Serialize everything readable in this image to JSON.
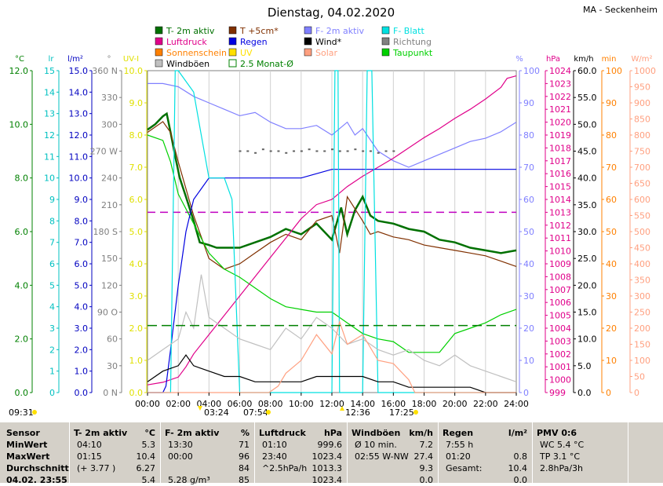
{
  "title": "Dienstag, 04.02.2020",
  "station": "MA - Seckenheim",
  "legend": [
    {
      "label": "T- 2m aktiv",
      "color": "#007000",
      "kind": "box"
    },
    {
      "label": "T +5cm*",
      "color": "#803000",
      "kind": "box"
    },
    {
      "label": "F- 2m aktiv",
      "color": "#8080ff",
      "kind": "box"
    },
    {
      "label": "F- Blatt",
      "color": "#00e0e0",
      "kind": "box"
    },
    {
      "label": "Luftdruck",
      "color": "#e0008a",
      "kind": "box"
    },
    {
      "label": "Regen",
      "color": "#0000e0",
      "kind": "box"
    },
    {
      "label": "Wind*",
      "color": "#000000",
      "kind": "box"
    },
    {
      "label": "Richtung",
      "color": "#808080",
      "kind": "box"
    },
    {
      "label": "Sonnenschein",
      "color": "#ff8000",
      "kind": "box"
    },
    {
      "label": "UV",
      "color": "#ffe000",
      "kind": "box"
    },
    {
      "label": "Solar",
      "color": "#ffa080",
      "kind": "box"
    },
    {
      "label": "Taupunkt",
      "color": "#00d000",
      "kind": "box"
    },
    {
      "label": "Windböen",
      "color": "#c0c0c0",
      "kind": "box"
    },
    {
      "label": "2.5 Monat-Ø",
      "color": "#008000",
      "kind": "hollow"
    }
  ],
  "axes": {
    "left": [
      {
        "unit": "°C",
        "color": "#008000",
        "ticks": [
          "12.0",
          "10.0",
          "8.0",
          "6.0",
          "4.0",
          "2.0",
          "0.0"
        ]
      },
      {
        "unit": "lr",
        "color": "#00c0c0",
        "ticks": [
          "15",
          "14",
          "13",
          "12",
          "11",
          "10",
          "9",
          "8",
          "7",
          "6",
          "5",
          "4",
          "3",
          "2",
          "1",
          "0"
        ]
      },
      {
        "unit": "l/m²",
        "color": "#0000c0",
        "ticks": [
          "15.0",
          "14.0",
          "13.0",
          "12.0",
          "11.0",
          "10.0",
          "9.0",
          "8.0",
          "7.0",
          "6.0",
          "5.0",
          "4.0",
          "3.0",
          "2.0",
          "1.0",
          "0.0"
        ]
      },
      {
        "unit": "°",
        "color": "#808080",
        "ticks": [
          "360 N",
          "330",
          "300",
          "270 W",
          "240",
          "210",
          "180 S",
          "150",
          "120",
          "90 O",
          "60",
          "30",
          "0 N"
        ]
      },
      {
        "unit": "UV-I",
        "color": "#e0e000",
        "ticks": [
          "10.0",
          "9.0",
          "8.0",
          "7.0",
          "6.0",
          "5.0",
          "4.0",
          "3.0",
          "2.0",
          "1.0",
          "0.0"
        ]
      }
    ],
    "right": [
      {
        "unit": "%",
        "color": "#8080ff",
        "ticks": [
          "100",
          "90",
          "80",
          "70",
          "60",
          "50",
          "40",
          "30",
          "20",
          "10",
          "0"
        ]
      },
      {
        "unit": "hPa",
        "color": "#e0008a",
        "ticks": [
          "1024",
          "1023",
          "1022",
          "1021",
          "1020",
          "1019",
          "1018",
          "1017",
          "1016",
          "1015",
          "1014",
          "1013",
          "1012",
          "1011",
          "1010",
          "1009",
          "1008",
          "1007",
          "1006",
          "1005",
          "1004",
          "1003",
          "1002",
          "1001",
          "1000",
          "999"
        ]
      },
      {
        "unit": "km/h",
        "color": "#000000",
        "ticks": [
          "60.0",
          "55.0",
          "50.0",
          "45.0",
          "40.0",
          "35.0",
          "30.0",
          "25.0",
          "20.0",
          "15.0",
          "10.0",
          "5.0",
          "0.0"
        ]
      },
      {
        "unit": "min",
        "color": "#ff8000",
        "ticks": [
          "100",
          "90",
          "80",
          "70",
          "60",
          "50",
          "40",
          "30",
          "20",
          "10",
          "0"
        ]
      },
      {
        "unit": "W/m²",
        "color": "#ffa080",
        "ticks": [
          "1000",
          "950",
          "900",
          "850",
          "800",
          "750",
          "700",
          "650",
          "600",
          "550",
          "500",
          "450",
          "400",
          "350",
          "300",
          "250",
          "200",
          "150",
          "100",
          "50",
          "0"
        ]
      }
    ],
    "x_ticks": [
      "00:00",
      "02:00",
      "04:00",
      "06:00",
      "08:00",
      "10:00",
      "12:00",
      "14:00",
      "16:00",
      "18:00",
      "20:00",
      "22:00",
      "24:00"
    ]
  },
  "markers": {
    "sunrise": "07:54",
    "sunset": "17:25",
    "min_temp_time": "03:24",
    "max_temp_time": "12:36",
    "left_time": "09:31"
  },
  "chart_data": {
    "type": "line",
    "xlim": [
      0,
      24
    ],
    "series": [
      {
        "name": "T- 2m aktiv",
        "axis": "°C",
        "color": "#007000",
        "x": [
          0,
          0.5,
          1.0,
          1.25,
          1.5,
          1.8,
          2.1,
          2.5,
          3.0,
          3.4,
          4.0,
          4.5,
          5.0,
          6.0,
          7.0,
          8.0,
          9.0,
          10.0,
          11.0,
          11.5,
          12.0,
          12.6,
          13.0,
          13.5,
          14.0,
          14.5,
          15.0,
          16.0,
          17.0,
          18.0,
          19.0,
          20.0,
          21.0,
          22.0,
          23.0,
          24.0
        ],
        "y": [
          9.8,
          10.0,
          10.3,
          10.4,
          9.7,
          8.8,
          8.0,
          7.3,
          6.4,
          5.6,
          5.5,
          5.4,
          5.4,
          5.4,
          5.6,
          5.8,
          6.1,
          5.9,
          6.3,
          6.0,
          5.7,
          6.9,
          5.9,
          6.8,
          7.3,
          6.6,
          6.4,
          6.3,
          6.1,
          6.0,
          5.7,
          5.6,
          5.4,
          5.3,
          5.2,
          5.3
        ]
      },
      {
        "name": "T +5cm*",
        "axis": "°C",
        "color": "#803000",
        "x": [
          0,
          0.5,
          1.0,
          1.5,
          2.0,
          3.0,
          4.0,
          5.0,
          6.0,
          7.0,
          8.0,
          9.0,
          10.0,
          11.0,
          12.0,
          12.5,
          13.0,
          14.0,
          14.5,
          15.0,
          16.0,
          17.0,
          18.0,
          19.0,
          20.0,
          21.0,
          22.0,
          23.0,
          24.0
        ],
        "y": [
          9.7,
          9.9,
          10.1,
          9.7,
          8.6,
          6.6,
          5.0,
          4.6,
          4.8,
          5.2,
          5.6,
          5.9,
          5.7,
          6.4,
          6.6,
          5.2,
          7.3,
          6.4,
          5.9,
          6.0,
          5.8,
          5.7,
          5.5,
          5.4,
          5.3,
          5.2,
          5.1,
          4.9,
          4.7
        ]
      },
      {
        "name": "Taupunkt",
        "axis": "°C",
        "color": "#00d000",
        "x": [
          0,
          1.0,
          1.5,
          2.0,
          3.0,
          4.0,
          5.0,
          6.0,
          7.0,
          8.0,
          9.0,
          10.0,
          11.0,
          12.0,
          13.0,
          14.0,
          15.0,
          16.0,
          17.0,
          18.0,
          19.0,
          20.0,
          21.0,
          22.0,
          23.0,
          24.0
        ],
        "y": [
          9.6,
          9.4,
          8.6,
          7.4,
          6.3,
          5.2,
          4.6,
          4.3,
          3.9,
          3.5,
          3.2,
          3.1,
          3.0,
          3.0,
          2.6,
          2.2,
          2.0,
          1.9,
          1.5,
          1.5,
          1.5,
          2.2,
          2.4,
          2.6,
          2.9,
          3.1
        ]
      },
      {
        "name": "F- 2m aktiv",
        "axis": "%",
        "color": "#8080ff",
        "x": [
          0,
          1.0,
          2.0,
          3.0,
          4.0,
          5.0,
          6.0,
          7.0,
          8.0,
          9.0,
          10.0,
          11.0,
          12.0,
          13.0,
          13.5,
          14.0,
          15.0,
          16.0,
          17.0,
          18.0,
          19.0,
          20.0,
          21.0,
          22.0,
          23.0,
          24.0
        ],
        "y": [
          96,
          96,
          95,
          92,
          90,
          88,
          86,
          87,
          84,
          82,
          82,
          83,
          80,
          84,
          80,
          82,
          75,
          72,
          70,
          72,
          74,
          76,
          78,
          79,
          81,
          84
        ]
      },
      {
        "name": "Luftdruck",
        "axis": "hPa",
        "color": "#e0008a",
        "x": [
          0,
          1.0,
          2.0,
          2.5,
          3.0,
          4.0,
          5.0,
          6.0,
          7.0,
          8.0,
          9.0,
          10.0,
          11.0,
          12.0,
          13.0,
          14.0,
          15.0,
          16.0,
          17.0,
          18.0,
          19.0,
          20.0,
          21.0,
          22.0,
          23.0,
          23.4,
          24.0
        ],
        "y": [
          999.6,
          999.8,
          1000.2,
          1001.0,
          1002.0,
          1003.5,
          1005.0,
          1006.5,
          1008.0,
          1009.5,
          1011.0,
          1012.5,
          1013.6,
          1014.0,
          1015.0,
          1015.8,
          1016.5,
          1017.2,
          1018.0,
          1018.8,
          1019.5,
          1020.3,
          1021.0,
          1021.8,
          1022.7,
          1023.4,
          1023.6
        ]
      },
      {
        "name": "Regen",
        "axis": "l/m²",
        "color": "#0000e0",
        "x": [
          0,
          1.0,
          1.2,
          1.5,
          2.0,
          2.5,
          3.0,
          4.0,
          6.0,
          8.0,
          10.0,
          12.0,
          14.0,
          16.0,
          18.0,
          20.0,
          22.0,
          24.0
        ],
        "y": [
          0.0,
          0.0,
          0.3,
          2.0,
          5.0,
          7.5,
          9.0,
          10.0,
          10.0,
          10.0,
          10.0,
          10.4,
          10.4,
          10.4,
          10.4,
          10.4,
          10.4,
          10.4
        ]
      },
      {
        "name": "F- Blatt",
        "axis": "lr",
        "color": "#00e0e0",
        "x": [
          0,
          1.5,
          1.8,
          2.0,
          3.0,
          3.5,
          4.0,
          5.0,
          5.5,
          6.0,
          7.0,
          12.0,
          12.2,
          12.4,
          12.5,
          14.0,
          14.3,
          14.6,
          15.0,
          19.0,
          24.0
        ],
        "y": [
          0,
          0,
          15,
          15,
          14,
          12,
          10,
          10,
          9,
          0,
          0,
          0,
          15,
          15,
          0,
          0,
          15,
          15,
          0,
          0,
          0
        ]
      },
      {
        "name": "Wind*",
        "axis": "km/h",
        "color": "#000000",
        "x": [
          0,
          1.0,
          2.0,
          2.5,
          3.0,
          4.0,
          5.0,
          6.0,
          7.0,
          8.0,
          9.0,
          10.0,
          11.0,
          12.0,
          13.0,
          14.0,
          15.0,
          16.0,
          17.0,
          18.0,
          19.0,
          20.0,
          21.0,
          22.0,
          23.0,
          24.0
        ],
        "y": [
          2,
          4,
          5,
          7,
          5,
          4,
          3,
          3,
          2,
          2,
          2,
          2,
          3,
          3,
          3,
          3,
          2,
          2,
          1,
          1,
          1,
          1,
          1,
          0,
          0,
          0
        ]
      },
      {
        "name": "Windböen",
        "axis": "km/h",
        "color": "#c0c0c0",
        "x": [
          0,
          1.0,
          2.0,
          2.5,
          3.0,
          3.5,
          4.0,
          5.0,
          6.0,
          7.0,
          8.0,
          9.0,
          10.0,
          11.0,
          12.0,
          13.0,
          14.0,
          15.0,
          16.0,
          17.0,
          18.0,
          19.0,
          20.0,
          21.0,
          22.0,
          23.0,
          24.0
        ],
        "y": [
          6,
          8,
          10,
          15,
          12,
          22,
          14,
          12,
          10,
          9,
          8,
          12,
          10,
          14,
          12,
          9,
          10,
          8,
          7,
          8,
          6,
          5,
          7,
          5,
          4,
          3,
          2
        ]
      },
      {
        "name": "Solar",
        "axis": "W/m²",
        "color": "#ffa080",
        "x": [
          0,
          7.9,
          8.5,
          9.0,
          10.0,
          11.0,
          12.0,
          12.5,
          13.0,
          14.0,
          15.0,
          16.0,
          17.0,
          17.4,
          24.0
        ],
        "y": [
          0,
          0,
          20,
          60,
          100,
          180,
          120,
          220,
          150,
          180,
          100,
          90,
          40,
          0,
          0
        ]
      },
      {
        "name": "2.5 Monat-Ø",
        "axis": "°C",
        "color": "#008000",
        "x": [
          0,
          24
        ],
        "y": [
          2.5,
          2.5
        ]
      }
    ],
    "direction_x": [
      6.0,
      6.5,
      7.0,
      7.5,
      8.0,
      8.5,
      9.0,
      9.5,
      10.0,
      10.5,
      11.0,
      11.5,
      12.0,
      12.5,
      13.0,
      13.5,
      14.0,
      14.5,
      15.0,
      15.5,
      16.0
    ],
    "direction_y": [
      270,
      270,
      268,
      272,
      270,
      270,
      268,
      270,
      270,
      272,
      270,
      270,
      272,
      270,
      270,
      272,
      270,
      270,
      268,
      270,
      270
    ],
    "mean_pressure_line": 1013.0
  },
  "table": [
    {
      "title": "Sensor",
      "unit": "",
      "rows": [
        [
          "MinWert",
          ""
        ],
        [
          "MaxWert",
          ""
        ],
        [
          "Durchschnitt",
          ""
        ],
        [
          "04.02. 23:55",
          ""
        ]
      ]
    },
    {
      "title": "T- 2m aktiv",
      "unit": "°C",
      "rows": [
        [
          "04:10",
          "5.3"
        ],
        [
          "01:15",
          "10.4"
        ],
        [
          "(+ 3.77 )",
          "6.27"
        ],
        [
          "",
          "5.4"
        ]
      ]
    },
    {
      "title": "F- 2m aktiv",
      "unit": "%",
      "rows": [
        [
          "13:30",
          "71"
        ],
        [
          "00:00",
          "96"
        ],
        [
          "",
          "84"
        ],
        [
          "5.28 g/m³",
          "85"
        ]
      ]
    },
    {
      "title": "Luftdruck",
      "unit": "hPa",
      "rows": [
        [
          "01:10",
          "999.6"
        ],
        [
          "23:40",
          "1023.4"
        ],
        [
          "^2.5hPa/h",
          "1013.3"
        ],
        [
          "",
          "1023.4"
        ]
      ]
    },
    {
      "title": "Windböen",
      "unit": "km/h",
      "rows": [
        [
          "Ø 10 min.",
          "7.2"
        ],
        [
          "02:55   W-NW",
          "27.4"
        ],
        [
          "",
          "9.3"
        ],
        [
          "",
          "0.0"
        ]
      ]
    },
    {
      "title": "Regen",
      "unit": "l/m²",
      "rows": [
        [
          "7:55 h",
          ""
        ],
        [
          "01:20",
          "0.8"
        ],
        [
          "Gesamt:",
          "10.4"
        ],
        [
          "",
          "0.0"
        ]
      ]
    },
    {
      "title": "PMV 0:6",
      "unit": "",
      "rows": [
        [
          "WC 5.4 °C",
          ""
        ],
        [
          "TP 3.1 °C",
          ""
        ],
        [
          "2.8hPa/3h",
          ""
        ],
        [
          "",
          ""
        ]
      ]
    }
  ]
}
